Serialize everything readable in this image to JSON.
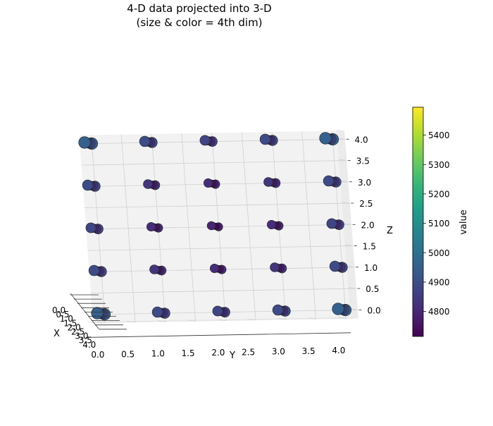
{
  "chart_data": {
    "type": "scatter",
    "title_line1": "4-D data projected into 3-D",
    "title_line2": "(size & color = 4th dim)",
    "xlabel": "X",
    "ylabel": "Y",
    "zlabel": "Z",
    "colorbar_label": "value",
    "xlim": [
      0,
      4
    ],
    "ylim": [
      0,
      4
    ],
    "zlim": [
      0,
      4
    ],
    "x_ticks": [
      "0.0",
      "0.5",
      "1.0",
      "1.5",
      "2.0",
      "2.5",
      "3.0",
      "3.5",
      "4.0"
    ],
    "y_ticks": [
      "0.0",
      "0.5",
      "1.0",
      "1.5",
      "2.0",
      "2.5",
      "3.0",
      "3.5",
      "4.0"
    ],
    "z_ticks": [
      "0.0",
      "0.5",
      "1.0",
      "1.5",
      "2.0",
      "2.5",
      "3.0",
      "3.5",
      "4.0"
    ],
    "colorbar_ticks": [
      "4800",
      "4900",
      "5000",
      "5100",
      "5200",
      "5300",
      "5400"
    ],
    "colorbar_range": [
      4715,
      5495
    ],
    "colormap": "viridis",
    "grid": true,
    "points_x": [
      0,
      1,
      2,
      3,
      4
    ],
    "points_y": [
      0,
      1,
      2,
      3,
      4
    ],
    "points_z": [
      0,
      1,
      2,
      3,
      4
    ],
    "value_formula": "4715 + 20 * ((x-2)^2 + (y-2)^2 + (z-2)^2)"
  }
}
